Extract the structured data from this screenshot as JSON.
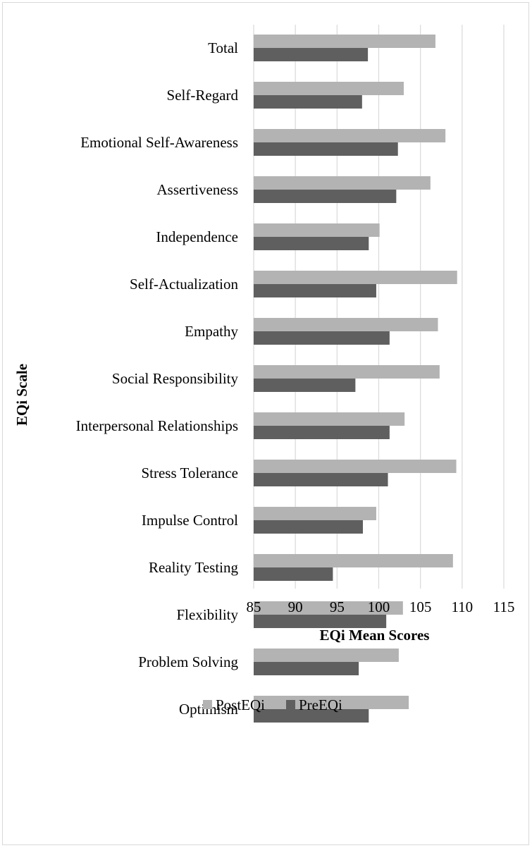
{
  "chart_data": {
    "type": "bar",
    "orientation": "horizontal",
    "categories": [
      "Total",
      "Self-Regard",
      "Emotional Self-Awareness",
      "Assertiveness",
      "Independence",
      "Self-Actualization",
      "Empathy",
      "Social Responsibility",
      "Interpersonal Relationships",
      "Stress Tolerance",
      "Impulse Control",
      "Reality Testing",
      "Flexibility",
      "Problem Solving",
      "Optimism"
    ],
    "series": [
      {
        "name": "PostEQi",
        "color": "#b3b3b3",
        "values": [
          106.8,
          103.0,
          108.0,
          106.2,
          100.1,
          109.4,
          107.1,
          107.3,
          103.1,
          109.3,
          99.7,
          108.9,
          102.9,
          102.4,
          103.6
        ]
      },
      {
        "name": "PreEQi",
        "color": "#5f5f5f",
        "values": [
          98.7,
          98.0,
          102.3,
          102.1,
          98.8,
          99.7,
          101.3,
          97.2,
          101.3,
          101.1,
          98.1,
          94.5,
          100.9,
          97.6,
          98.8
        ]
      }
    ],
    "xlabel": "EQi Mean Scores",
    "ylabel": "EQi Scale",
    "xlim": [
      85,
      115
    ],
    "xticks": [
      85,
      90,
      95,
      100,
      105,
      110,
      115
    ],
    "grid": true,
    "legend_position": "bottom"
  }
}
